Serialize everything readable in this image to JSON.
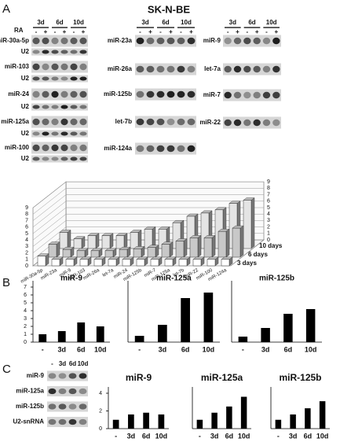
{
  "panel_labels": {
    "a": "A",
    "b": "B",
    "c": "C"
  },
  "title": "SK-N-BE",
  "blots_a": {
    "ra_label": "RA",
    "times": [
      "3d",
      "6d",
      "10d"
    ],
    "signs": [
      "-",
      "+"
    ],
    "columns": [
      [
        "miR-30a-5p",
        "U2",
        "miR-103",
        "U2",
        "miR-24",
        "U2",
        "miR-125a",
        "U2",
        "miR-100",
        "U2"
      ],
      [
        "miR-23a",
        "miR-26a",
        "miR-125b",
        "let-7b",
        "miR-124a"
      ],
      [
        "miR-9",
        "let-7a",
        "miR-7",
        "miR-22"
      ]
    ]
  },
  "blots_c": {
    "lanes": [
      "-",
      "3d",
      "6d",
      "10d"
    ],
    "rows": [
      "miR-9",
      "miR-125a",
      "miR-125b",
      "U2-snRNA"
    ]
  },
  "chart_data": [
    {
      "type": "bar3d",
      "categories": [
        "miR-30a-5p",
        "miR-23a",
        "miR-9",
        "miR-103",
        "miR-26a",
        "let-7a",
        "miR-24",
        "miR-125b",
        "miR-7",
        "miR-125a",
        "let-7b",
        "miR-22",
        "miR-100",
        "miR-124a"
      ],
      "series": [
        {
          "name": "3 days",
          "color": "#ffffff",
          "values": [
            1.5,
            1,
            1,
            1,
            1,
            1,
            1,
            1,
            1,
            1,
            1,
            1,
            1,
            1
          ]
        },
        {
          "name": "6 days",
          "color": "#c8c8c8",
          "values": [
            2,
            1.2,
            1,
            1,
            1,
            1.2,
            1.3,
            1.5,
            2,
            2.5,
            3,
            3,
            4,
            4.5
          ]
        },
        {
          "name": "10 days",
          "color": "#e4e4e4",
          "values": [
            2.5,
            1.5,
            2,
            2,
            2,
            2.5,
            3,
            3,
            4,
            5,
            5.5,
            6,
            7,
            7.5
          ]
        }
      ],
      "ylim": [
        0,
        9
      ],
      "yticks": [
        0,
        1,
        2,
        3,
        4,
        5,
        6,
        7,
        8,
        9
      ],
      "grid": true
    },
    {
      "type": "bar",
      "title": "miR-9",
      "categories": [
        "-",
        "3d",
        "6d",
        "10d"
      ],
      "values": [
        1,
        1.4,
        2.5,
        2
      ],
      "color": "#000000",
      "ylim": [
        0,
        7
      ],
      "yticks": [
        0,
        1,
        2,
        3,
        4,
        5,
        6,
        7
      ]
    },
    {
      "type": "bar",
      "title": "miR-125a",
      "categories": [
        "-",
        "3d",
        "6d",
        "10d"
      ],
      "values": [
        0.8,
        2.2,
        5.6,
        6.3
      ],
      "color": "#000000",
      "ylim": [
        0,
        7
      ]
    },
    {
      "type": "bar",
      "title": "miR-125b",
      "categories": [
        "-",
        "3d",
        "6d",
        "10d"
      ],
      "values": [
        0.7,
        1.8,
        3.6,
        4.2
      ],
      "color": "#000000",
      "ylim": [
        0,
        7
      ]
    },
    {
      "type": "bar",
      "title": "miR-9",
      "categories": [
        "-",
        "3d",
        "6d",
        "10d"
      ],
      "values": [
        1,
        1.6,
        1.8,
        1.6
      ],
      "color": "#000000",
      "ylim": [
        0,
        4
      ],
      "yticks": [
        0,
        2,
        4
      ]
    },
    {
      "type": "bar",
      "title": "miR-125a",
      "categories": [
        "-",
        "3d",
        "6d",
        "10d"
      ],
      "values": [
        1,
        1.8,
        2.5,
        3.6
      ],
      "color": "#000000",
      "ylim": [
        0,
        4
      ]
    },
    {
      "type": "bar",
      "title": "miR-125b",
      "categories": [
        "-",
        "3d",
        "6d",
        "10d"
      ],
      "values": [
        1,
        1.6,
        2.3,
        3.1
      ],
      "color": "#000000",
      "ylim": [
        0,
        4
      ]
    }
  ]
}
